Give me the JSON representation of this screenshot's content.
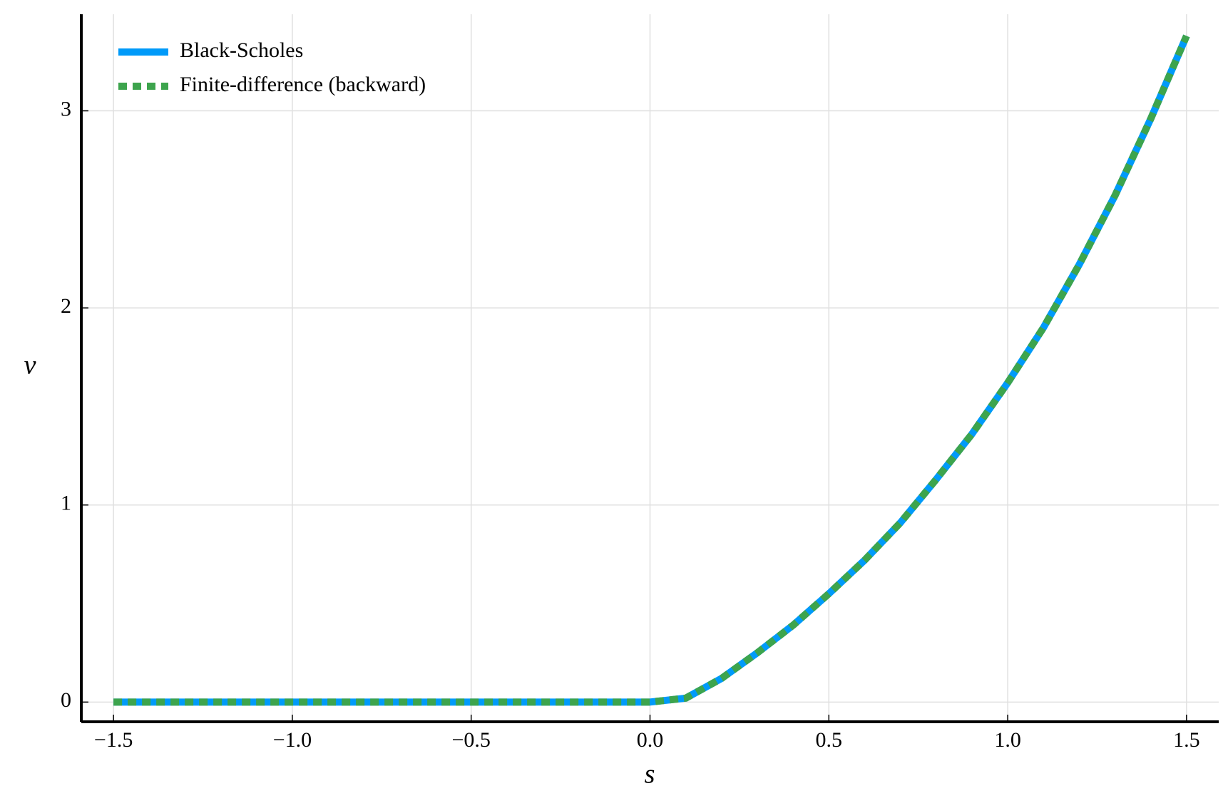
{
  "chart_data": {
    "type": "line",
    "x_label": "s",
    "y_label": "v",
    "x": [
      -1.5,
      -1.4,
      -1.3,
      -1.2,
      -1.1,
      -1.0,
      -0.9,
      -0.8,
      -0.7,
      -0.6,
      -0.5,
      -0.4,
      -0.3,
      -0.2,
      -0.1,
      0.0,
      0.1,
      0.2,
      0.3,
      0.4,
      0.5,
      0.6,
      0.7,
      0.8,
      0.9,
      1.0,
      1.1,
      1.2,
      1.3,
      1.4,
      1.5
    ],
    "series": [
      {
        "name": "Black-Scholes",
        "color": "#009af9",
        "style": "solid",
        "values": [
          0,
          0,
          0,
          0,
          0,
          0,
          0,
          0,
          0,
          0,
          0,
          0,
          0,
          0,
          0,
          0,
          0.02,
          0.12,
          0.25,
          0.39,
          0.55,
          0.72,
          0.91,
          1.13,
          1.36,
          1.62,
          1.9,
          2.22,
          2.57,
          2.96,
          3.38
        ]
      },
      {
        "name": "Finite-difference (backward)",
        "color": "#3da44d",
        "style": "dotted",
        "values": [
          0,
          0,
          0,
          0,
          0,
          0,
          0,
          0,
          0,
          0,
          0,
          0,
          0,
          0,
          0,
          0,
          0.02,
          0.12,
          0.25,
          0.39,
          0.55,
          0.72,
          0.91,
          1.13,
          1.36,
          1.62,
          1.9,
          2.22,
          2.57,
          2.96,
          3.38
        ]
      }
    ],
    "xlim": [
      -1.59,
      1.59
    ],
    "xticks": [
      {
        "value": -1.5,
        "label": "−1.5"
      },
      {
        "value": -1.0,
        "label": "−1.0"
      },
      {
        "value": -0.5,
        "label": "−0.5"
      },
      {
        "value": 0,
        "label": "0.0"
      },
      0.5,
      {
        "value": 1.0,
        "label": "1.0"
      },
      1.5
    ],
    "ylim": [
      -0.1,
      3.49
    ],
    "yticks": [
      0,
      1,
      2,
      3
    ],
    "grid": true,
    "legend": "top-left"
  }
}
